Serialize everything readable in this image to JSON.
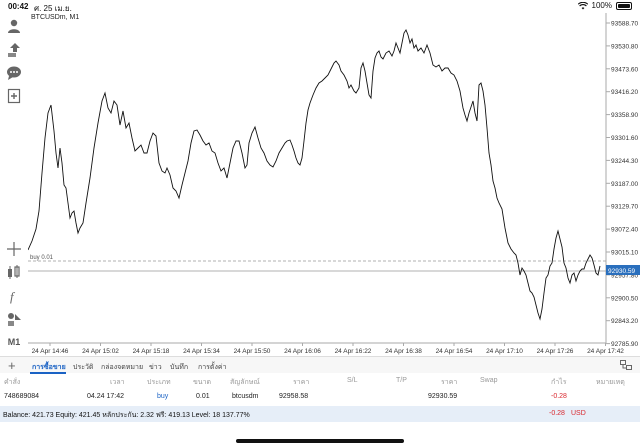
{
  "status": {
    "time": "00:42",
    "date": "ศ. 25 เม.ย.",
    "battery": "100%"
  },
  "chart": {
    "symbol_title": "BTCUSDm, M1",
    "y_ticks": [
      "93588.70",
      "93530.80",
      "93473.60",
      "93416.20",
      "93358.90",
      "93301.60",
      "93244.30",
      "93187.00",
      "93129.70",
      "93072.40",
      "93015.10",
      "92957.80",
      "92900.50",
      "92843.20",
      "92785.90"
    ],
    "price_tag": "92930.59",
    "order_line_label": "buy 0.01",
    "x_ticks": [
      "24 Apr 14:46",
      "24 Apr 15:02",
      "24 Apr 15:18",
      "24 Apr 15:34",
      "24 Apr 15:50",
      "24 Apr 16:06",
      "24 Apr 16:22",
      "24 Apr 16:38",
      "24 Apr 16:54",
      "24 Apr 17:10",
      "24 Apr 17:26",
      "24 Apr 17:42"
    ]
  },
  "tabs": [
    {
      "label": "การซื้อขาย"
    },
    {
      "label": "ประวัติ"
    },
    {
      "label": "กล่องจดหมาย"
    },
    {
      "label": "ข่าว"
    },
    {
      "label": "บันทึก"
    },
    {
      "label": "การตั้งค่า"
    }
  ],
  "table": {
    "headers": {
      "order": "คำสั่ง",
      "time": "เวลา",
      "type": "ประเภท",
      "volume": "ขนาด",
      "symbol": "สัญลักษณ์",
      "price": "ราคา",
      "sl": "S/L",
      "tp": "T/P",
      "current_price": "ราคา",
      "swap": "Swap",
      "profit": "กำไร",
      "comment": "หมายเหตุ"
    },
    "row": {
      "order": "748689084",
      "time": "04.24 17:42",
      "type": "buy",
      "volume": "0.01",
      "symbol": "btcusdm",
      "price": "92958.58",
      "current_price": "92930.59",
      "profit": "-0.28"
    }
  },
  "balance": {
    "summary": "Balance: 421.73 Equity: 421.45 หลักประกัน: 2.32 ฟรี: 419.13 Level: 18 137.77%",
    "profit": "-0.28",
    "currency": "USD"
  },
  "colors": {
    "accent": "#1a62c4",
    "negative": "#d9282f",
    "balance_bg": "#e6eef8"
  }
}
